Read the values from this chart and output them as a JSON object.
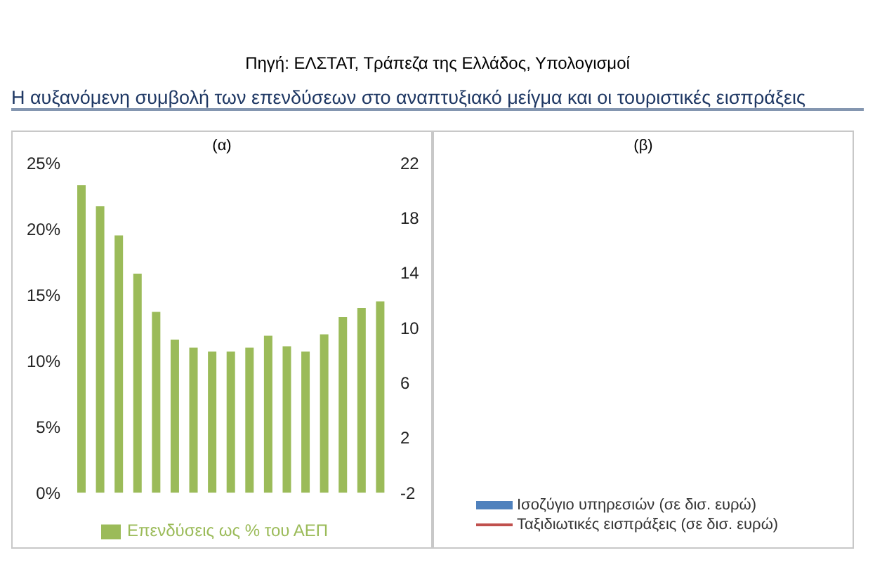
{
  "chart_data": [
    {
      "type": "bar",
      "title": "(α)",
      "annotations": [
        "Πηγή: ΕΛΣΤΑΤ, Τράπεζα της Ελλάδος, Υπολογισμοί",
        "Η αυξανόμενη συμβολή των επενδύσεων στο αναπτυξιακό μείγμα και οι τουριστικές εισπράξεις"
      ],
      "categories": [
        null,
        null,
        null,
        null,
        null,
        null,
        null,
        null,
        null,
        null,
        null,
        null,
        null,
        null,
        null,
        null,
        null
      ],
      "series": [
        {
          "name": "Επενδύσεις ως % του ΑΕΠ",
          "color": "#9bbb59",
          "values": [
            23.3,
            21.7,
            19.5,
            16.6,
            13.7,
            11.6,
            11.0,
            10.7,
            10.7,
            11.0,
            11.9,
            11.1,
            10.7,
            12.0,
            13.3,
            14.0,
            14.5
          ]
        }
      ],
      "ylim": [
        0,
        25
      ],
      "yticks": [
        {
          "value": 0,
          "label": "0%"
        },
        {
          "value": 5,
          "label": "5%"
        },
        {
          "value": 10,
          "label": "10%"
        },
        {
          "value": 15,
          "label": "15%"
        },
        {
          "value": 20,
          "label": "20%"
        },
        {
          "value": 25,
          "label": "25%"
        }
      ],
      "y2lim": [
        -2,
        22
      ],
      "y2ticks": [
        -2,
        2,
        6,
        10,
        14,
        18,
        22
      ],
      "legend": "bottom"
    },
    {
      "type": "other",
      "title": "(β)",
      "series": [
        {
          "name": "Ισοζύγιο υπηρεσιών (σε δισ. ευρώ)",
          "type": "bar",
          "color": "#4f81bd"
        },
        {
          "name": "Ταξιδιωτικές εισπράξεις (σε δισ. ευρώ)",
          "type": "line",
          "color": "#c0504d"
        }
      ],
      "legend": "bottom"
    }
  ]
}
